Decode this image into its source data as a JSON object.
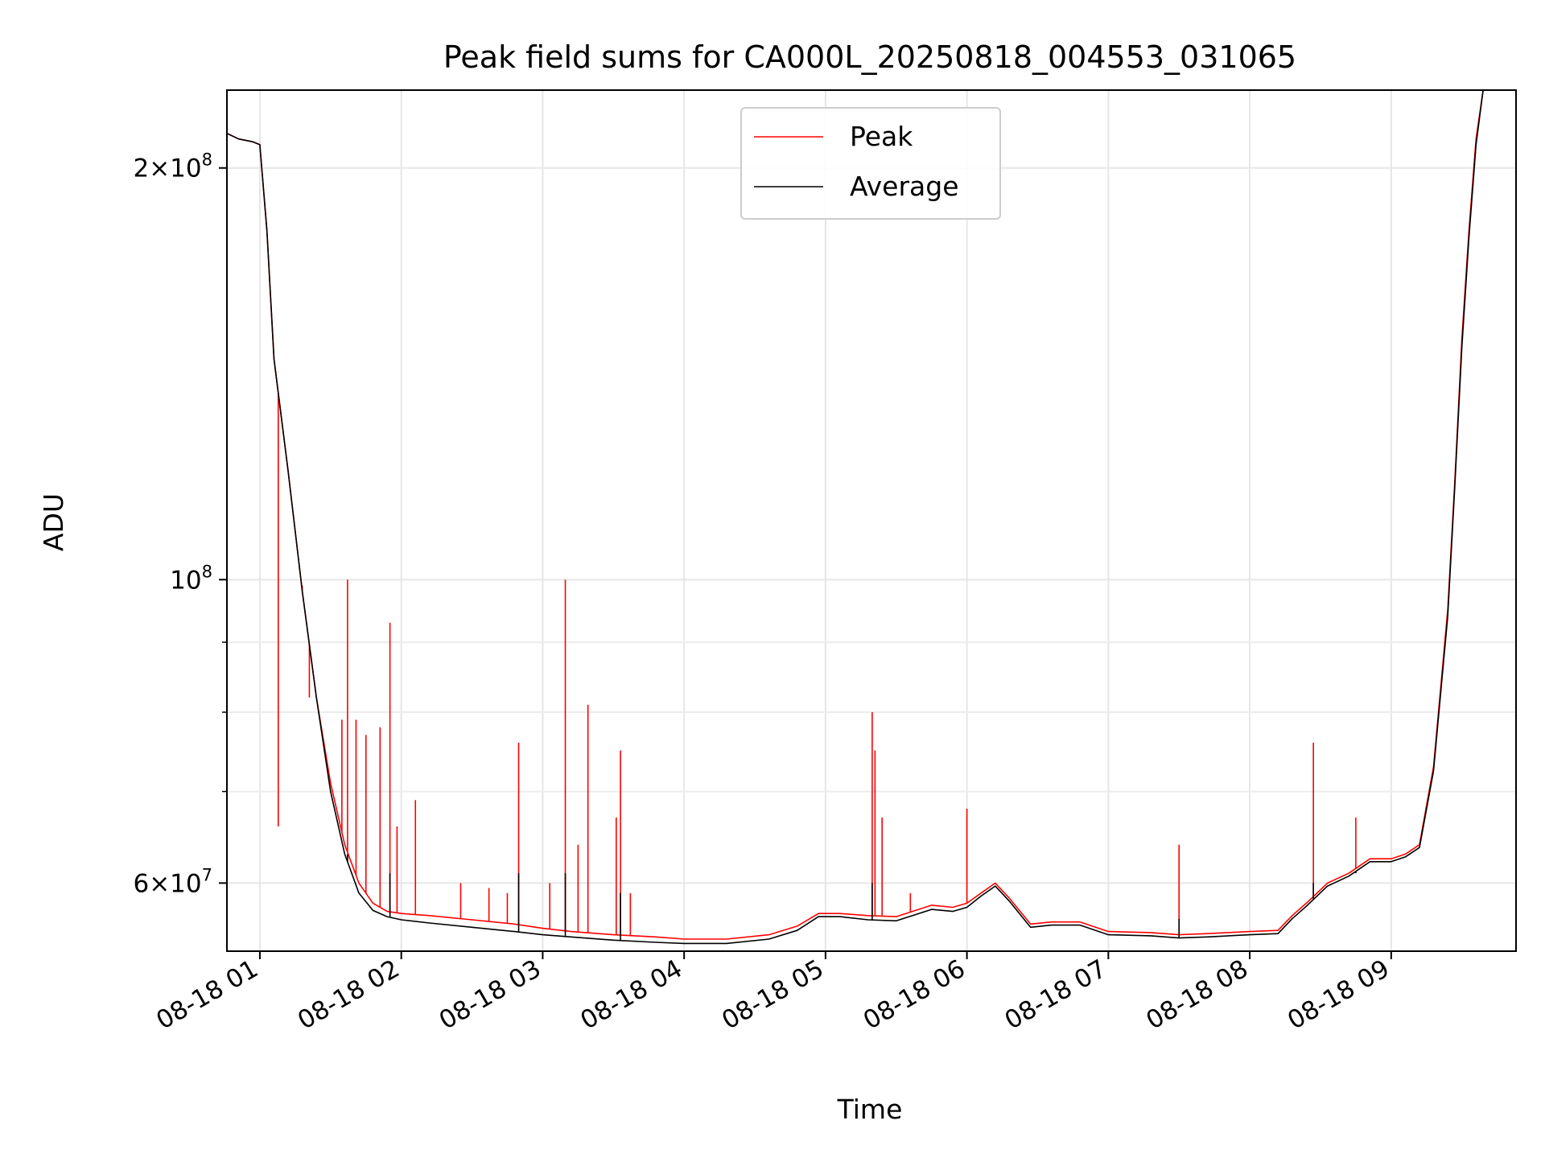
{
  "chart_data": {
    "type": "line",
    "title": "Peak field sums for CA000L_20250818_004553_031065",
    "xlabel": "Time",
    "ylabel": "ADU",
    "yscale": "log",
    "xlim": [
      0.767,
      9.883
    ],
    "ylim": [
      53500000,
      228000000
    ],
    "x_unit": "hours on 08-18",
    "xticks": [
      {
        "value": 1,
        "label": "08-18 01"
      },
      {
        "value": 2,
        "label": "08-18 02"
      },
      {
        "value": 3,
        "label": "08-18 03"
      },
      {
        "value": 4,
        "label": "08-18 04"
      },
      {
        "value": 5,
        "label": "08-18 05"
      },
      {
        "value": 6,
        "label": "08-18 06"
      },
      {
        "value": 7,
        "label": "08-18 07"
      },
      {
        "value": 8,
        "label": "08-18 08"
      },
      {
        "value": 9,
        "label": "08-18 09"
      }
    ],
    "yticks": [
      {
        "value": 200000000,
        "mant": "2",
        "exp": "8"
      },
      {
        "value": 100000000,
        "mant": "",
        "exp": "8"
      },
      {
        "value": 60000000,
        "mant": "6",
        "exp": "7"
      }
    ],
    "yminor": [
      70000000,
      80000000,
      90000000
    ],
    "grid": true,
    "legend": {
      "position": "upper center"
    },
    "series": [
      {
        "name": "Peak",
        "color": "#ff0000",
        "points": [
          [
            0.767,
            212000000
          ],
          [
            0.85,
            210000000
          ],
          [
            0.95,
            209000000
          ],
          [
            1.0,
            208000000
          ],
          [
            1.05,
            180000000
          ],
          [
            1.1,
            145000000
          ],
          [
            1.2,
            120000000
          ],
          [
            1.3,
            98000000
          ],
          [
            1.4,
            82000000
          ],
          [
            1.5,
            71000000
          ],
          [
            1.6,
            64000000
          ],
          [
            1.7,
            60000000
          ],
          [
            1.8,
            58000000
          ],
          [
            1.9,
            57200000
          ],
          [
            2.0,
            57000000
          ],
          [
            2.2,
            56800000
          ],
          [
            2.5,
            56400000
          ],
          [
            2.8,
            56000000
          ],
          [
            3.0,
            55600000
          ],
          [
            3.2,
            55300000
          ],
          [
            3.5,
            55000000
          ],
          [
            3.8,
            54800000
          ],
          [
            4.0,
            54600000
          ],
          [
            4.3,
            54600000
          ],
          [
            4.6,
            55000000
          ],
          [
            4.8,
            55800000
          ],
          [
            4.95,
            57000000
          ],
          [
            5.1,
            57000000
          ],
          [
            5.3,
            56800000
          ],
          [
            5.5,
            56700000
          ],
          [
            5.75,
            57800000
          ],
          [
            5.9,
            57600000
          ],
          [
            6.0,
            58000000
          ],
          [
            6.1,
            59000000
          ],
          [
            6.2,
            60000000
          ],
          [
            6.3,
            58500000
          ],
          [
            6.45,
            56000000
          ],
          [
            6.6,
            56200000
          ],
          [
            6.8,
            56200000
          ],
          [
            7.0,
            55300000
          ],
          [
            7.3,
            55200000
          ],
          [
            7.5,
            55000000
          ],
          [
            7.7,
            55100000
          ],
          [
            8.0,
            55300000
          ],
          [
            8.2,
            55400000
          ],
          [
            8.3,
            56800000
          ],
          [
            8.4,
            58000000
          ],
          [
            8.55,
            60000000
          ],
          [
            8.7,
            61000000
          ],
          [
            8.85,
            62500000
          ],
          [
            9.0,
            62500000
          ],
          [
            9.1,
            63000000
          ],
          [
            9.2,
            64000000
          ],
          [
            9.3,
            73000000
          ],
          [
            9.4,
            95000000
          ],
          [
            9.45,
            118000000
          ],
          [
            9.5,
            150000000
          ],
          [
            9.55,
            180000000
          ],
          [
            9.6,
            210000000
          ],
          [
            9.65,
            228000000
          ],
          [
            9.883,
            228000000
          ]
        ],
        "spikes": [
          [
            1.13,
            66000000
          ],
          [
            1.3,
            99000000
          ],
          [
            1.35,
            82000000
          ],
          [
            1.58,
            79000000
          ],
          [
            1.62,
            100000000
          ],
          [
            1.68,
            79000000
          ],
          [
            1.75,
            77000000
          ],
          [
            1.85,
            78000000
          ],
          [
            1.92,
            93000000
          ],
          [
            1.97,
            66000000
          ],
          [
            2.1,
            69000000
          ],
          [
            2.42,
            60000000
          ],
          [
            2.62,
            59500000
          ],
          [
            2.75,
            59000000
          ],
          [
            2.83,
            76000000
          ],
          [
            3.05,
            60000000
          ],
          [
            3.16,
            100000000
          ],
          [
            3.25,
            64000000
          ],
          [
            3.32,
            81000000
          ],
          [
            3.52,
            67000000
          ],
          [
            3.55,
            75000000
          ],
          [
            3.62,
            59000000
          ],
          [
            5.33,
            80000000
          ],
          [
            5.35,
            75000000
          ],
          [
            5.4,
            67000000
          ],
          [
            5.6,
            59000000
          ],
          [
            6.0,
            68000000
          ],
          [
            7.5,
            64000000
          ],
          [
            8.45,
            76000000
          ],
          [
            8.75,
            67000000
          ]
        ]
      },
      {
        "name": "Average",
        "color": "#000000",
        "points": [
          [
            0.767,
            212000000
          ],
          [
            0.85,
            210000000
          ],
          [
            0.95,
            209000000
          ],
          [
            1.0,
            208000000
          ],
          [
            1.05,
            180000000
          ],
          [
            1.1,
            145000000
          ],
          [
            1.2,
            120000000
          ],
          [
            1.3,
            98000000
          ],
          [
            1.4,
            82000000
          ],
          [
            1.5,
            70000000
          ],
          [
            1.6,
            63000000
          ],
          [
            1.7,
            59000000
          ],
          [
            1.8,
            57300000
          ],
          [
            1.9,
            56700000
          ],
          [
            2.0,
            56400000
          ],
          [
            2.2,
            56100000
          ],
          [
            2.5,
            55700000
          ],
          [
            2.8,
            55300000
          ],
          [
            3.0,
            55000000
          ],
          [
            3.2,
            54800000
          ],
          [
            3.5,
            54500000
          ],
          [
            3.8,
            54300000
          ],
          [
            4.0,
            54200000
          ],
          [
            4.3,
            54200000
          ],
          [
            4.6,
            54600000
          ],
          [
            4.8,
            55400000
          ],
          [
            4.95,
            56700000
          ],
          [
            5.1,
            56700000
          ],
          [
            5.3,
            56400000
          ],
          [
            5.5,
            56300000
          ],
          [
            5.75,
            57400000
          ],
          [
            5.9,
            57200000
          ],
          [
            6.0,
            57600000
          ],
          [
            6.1,
            58700000
          ],
          [
            6.2,
            59700000
          ],
          [
            6.3,
            58200000
          ],
          [
            6.45,
            55700000
          ],
          [
            6.6,
            55900000
          ],
          [
            6.8,
            55900000
          ],
          [
            7.0,
            55000000
          ],
          [
            7.3,
            54900000
          ],
          [
            7.5,
            54700000
          ],
          [
            7.7,
            54800000
          ],
          [
            8.0,
            55000000
          ],
          [
            8.2,
            55100000
          ],
          [
            8.3,
            56500000
          ],
          [
            8.4,
            57700000
          ],
          [
            8.55,
            59700000
          ],
          [
            8.7,
            60700000
          ],
          [
            8.85,
            62200000
          ],
          [
            9.0,
            62200000
          ],
          [
            9.1,
            62700000
          ],
          [
            9.2,
            63700000
          ],
          [
            9.3,
            72500000
          ],
          [
            9.4,
            94000000
          ],
          [
            9.45,
            117000000
          ],
          [
            9.5,
            148000000
          ],
          [
            9.55,
            178000000
          ],
          [
            9.6,
            208000000
          ],
          [
            9.65,
            228000000
          ],
          [
            9.883,
            228000000
          ]
        ],
        "spikes": [
          [
            1.62,
            63000000
          ],
          [
            1.92,
            61000000
          ],
          [
            2.83,
            61000000
          ],
          [
            3.16,
            61000000
          ],
          [
            3.55,
            59000000
          ],
          [
            5.33,
            60000000
          ],
          [
            7.5,
            56500000
          ],
          [
            8.45,
            60000000
          ],
          [
            8.75,
            61000000
          ]
        ]
      }
    ]
  }
}
